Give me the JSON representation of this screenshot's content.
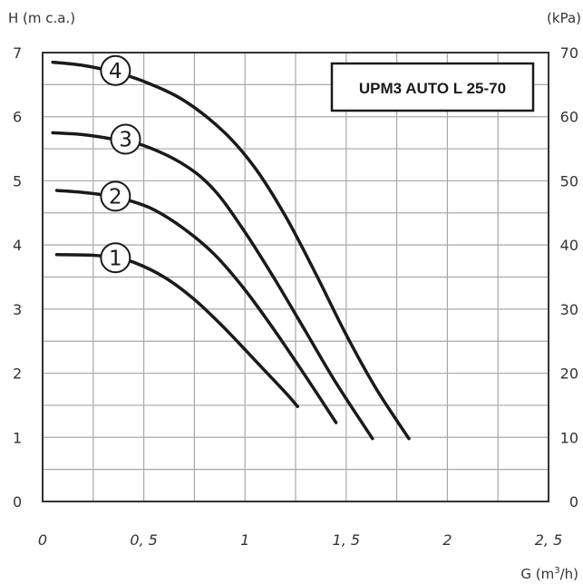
{
  "chart_data": {
    "type": "line",
    "ylabel_left": "H (m c.a.)",
    "ylabel_right": "(kPa)",
    "xlabel_prefix": "G (m",
    "xlabel_sup": "3",
    "xlabel_suffix": "/h)",
    "title_box": "UPM3 AUTO L 25-70",
    "xlim": [
      0,
      2.5
    ],
    "ylim": [
      0,
      7
    ],
    "ylim_right": [
      0,
      70
    ],
    "x_ticks": [
      {
        "value": 0,
        "label": "0"
      },
      {
        "value": 0.5,
        "label": "0, 5"
      },
      {
        "value": 1,
        "label": "1"
      },
      {
        "value": 1.5,
        "label": "1, 5"
      },
      {
        "value": 2,
        "label": "2"
      },
      {
        "value": 2.5,
        "label": "2, 5"
      }
    ],
    "y_ticks_left": [
      {
        "value": 0,
        "label": "0"
      },
      {
        "value": 1,
        "label": "1"
      },
      {
        "value": 2,
        "label": "2"
      },
      {
        "value": 3,
        "label": "3"
      },
      {
        "value": 4,
        "label": "4"
      },
      {
        "value": 5,
        "label": "5"
      },
      {
        "value": 6,
        "label": "6"
      },
      {
        "value": 7,
        "label": "7"
      }
    ],
    "y_ticks_right": [
      {
        "value": 0,
        "label": "0"
      },
      {
        "value": 1,
        "label": "10"
      },
      {
        "value": 2,
        "label": "20"
      },
      {
        "value": 3,
        "label": "30"
      },
      {
        "value": 4,
        "label": "40"
      },
      {
        "value": 5,
        "label": "50"
      },
      {
        "value": 6,
        "label": "60"
      },
      {
        "value": 7,
        "label": "70"
      }
    ],
    "grid": true,
    "series": [
      {
        "name": "1",
        "x": [
          0.07,
          0.25,
          0.35,
          0.45,
          0.6,
          0.75,
          0.9,
          1.05,
          1.2,
          1.26
        ],
        "y": [
          3.85,
          3.84,
          3.8,
          3.73,
          3.5,
          3.15,
          2.7,
          2.2,
          1.7,
          1.48
        ]
      },
      {
        "name": "2",
        "x": [
          0.07,
          0.2,
          0.3,
          0.42,
          0.55,
          0.7,
          0.85,
          1.0,
          1.15,
          1.3,
          1.45
        ],
        "y": [
          4.85,
          4.82,
          4.78,
          4.7,
          4.55,
          4.25,
          3.85,
          3.3,
          2.65,
          1.95,
          1.23
        ]
      },
      {
        "name": "3",
        "x": [
          0.05,
          0.2,
          0.35,
          0.5,
          0.7,
          0.85,
          1.0,
          1.15,
          1.3,
          1.45,
          1.63
        ],
        "y": [
          5.75,
          5.72,
          5.65,
          5.55,
          5.25,
          4.85,
          4.2,
          3.45,
          2.65,
          1.85,
          0.98
        ]
      },
      {
        "name": "4",
        "x": [
          0.05,
          0.2,
          0.35,
          0.5,
          0.7,
          0.9,
          1.05,
          1.2,
          1.35,
          1.5,
          1.65,
          1.81
        ],
        "y": [
          6.85,
          6.8,
          6.7,
          6.55,
          6.25,
          5.75,
          5.2,
          4.45,
          3.55,
          2.6,
          1.75,
          0.98
        ]
      }
    ],
    "curve_markers": [
      {
        "label": "1",
        "x": 0.36,
        "y": 3.8
      },
      {
        "label": "2",
        "x": 0.36,
        "y": 4.76
      },
      {
        "label": "3",
        "x": 0.41,
        "y": 5.65
      },
      {
        "label": "4",
        "x": 0.36,
        "y": 6.72
      }
    ],
    "colors": {
      "curve": "#1a1a1a",
      "grid": "#a8a8a8",
      "frame": "#333333",
      "text": "#333333"
    }
  }
}
